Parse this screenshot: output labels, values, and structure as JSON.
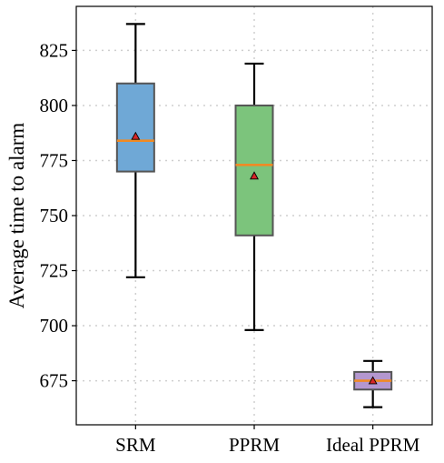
{
  "chart_data": {
    "type": "box",
    "title": "",
    "xlabel": "",
    "ylabel": "Average time to alarm",
    "categories": [
      "SRM",
      "PPRM",
      "Ideal PPRM"
    ],
    "ylim": [
      655,
      845
    ],
    "yticks": [
      675,
      700,
      725,
      750,
      775,
      800,
      825
    ],
    "grid": true,
    "boxes": [
      {
        "category": "SRM",
        "whisker_low": 722,
        "q1": 770,
        "median": 784,
        "q3": 810,
        "whisker_high": 837,
        "mean": 786,
        "color": "#6fa8d6"
      },
      {
        "category": "PPRM",
        "whisker_low": 698,
        "q1": 741,
        "median": 773,
        "q3": 800,
        "whisker_high": 819,
        "mean": 768,
        "color": "#7cc47c"
      },
      {
        "category": "Ideal PPRM",
        "whisker_low": 663,
        "q1": 671,
        "median": 675,
        "q3": 679,
        "whisker_high": 684,
        "mean": 675,
        "color": "#b497cf"
      }
    ],
    "median_color": "#f08a24",
    "mean_marker_color": "#d62728"
  }
}
